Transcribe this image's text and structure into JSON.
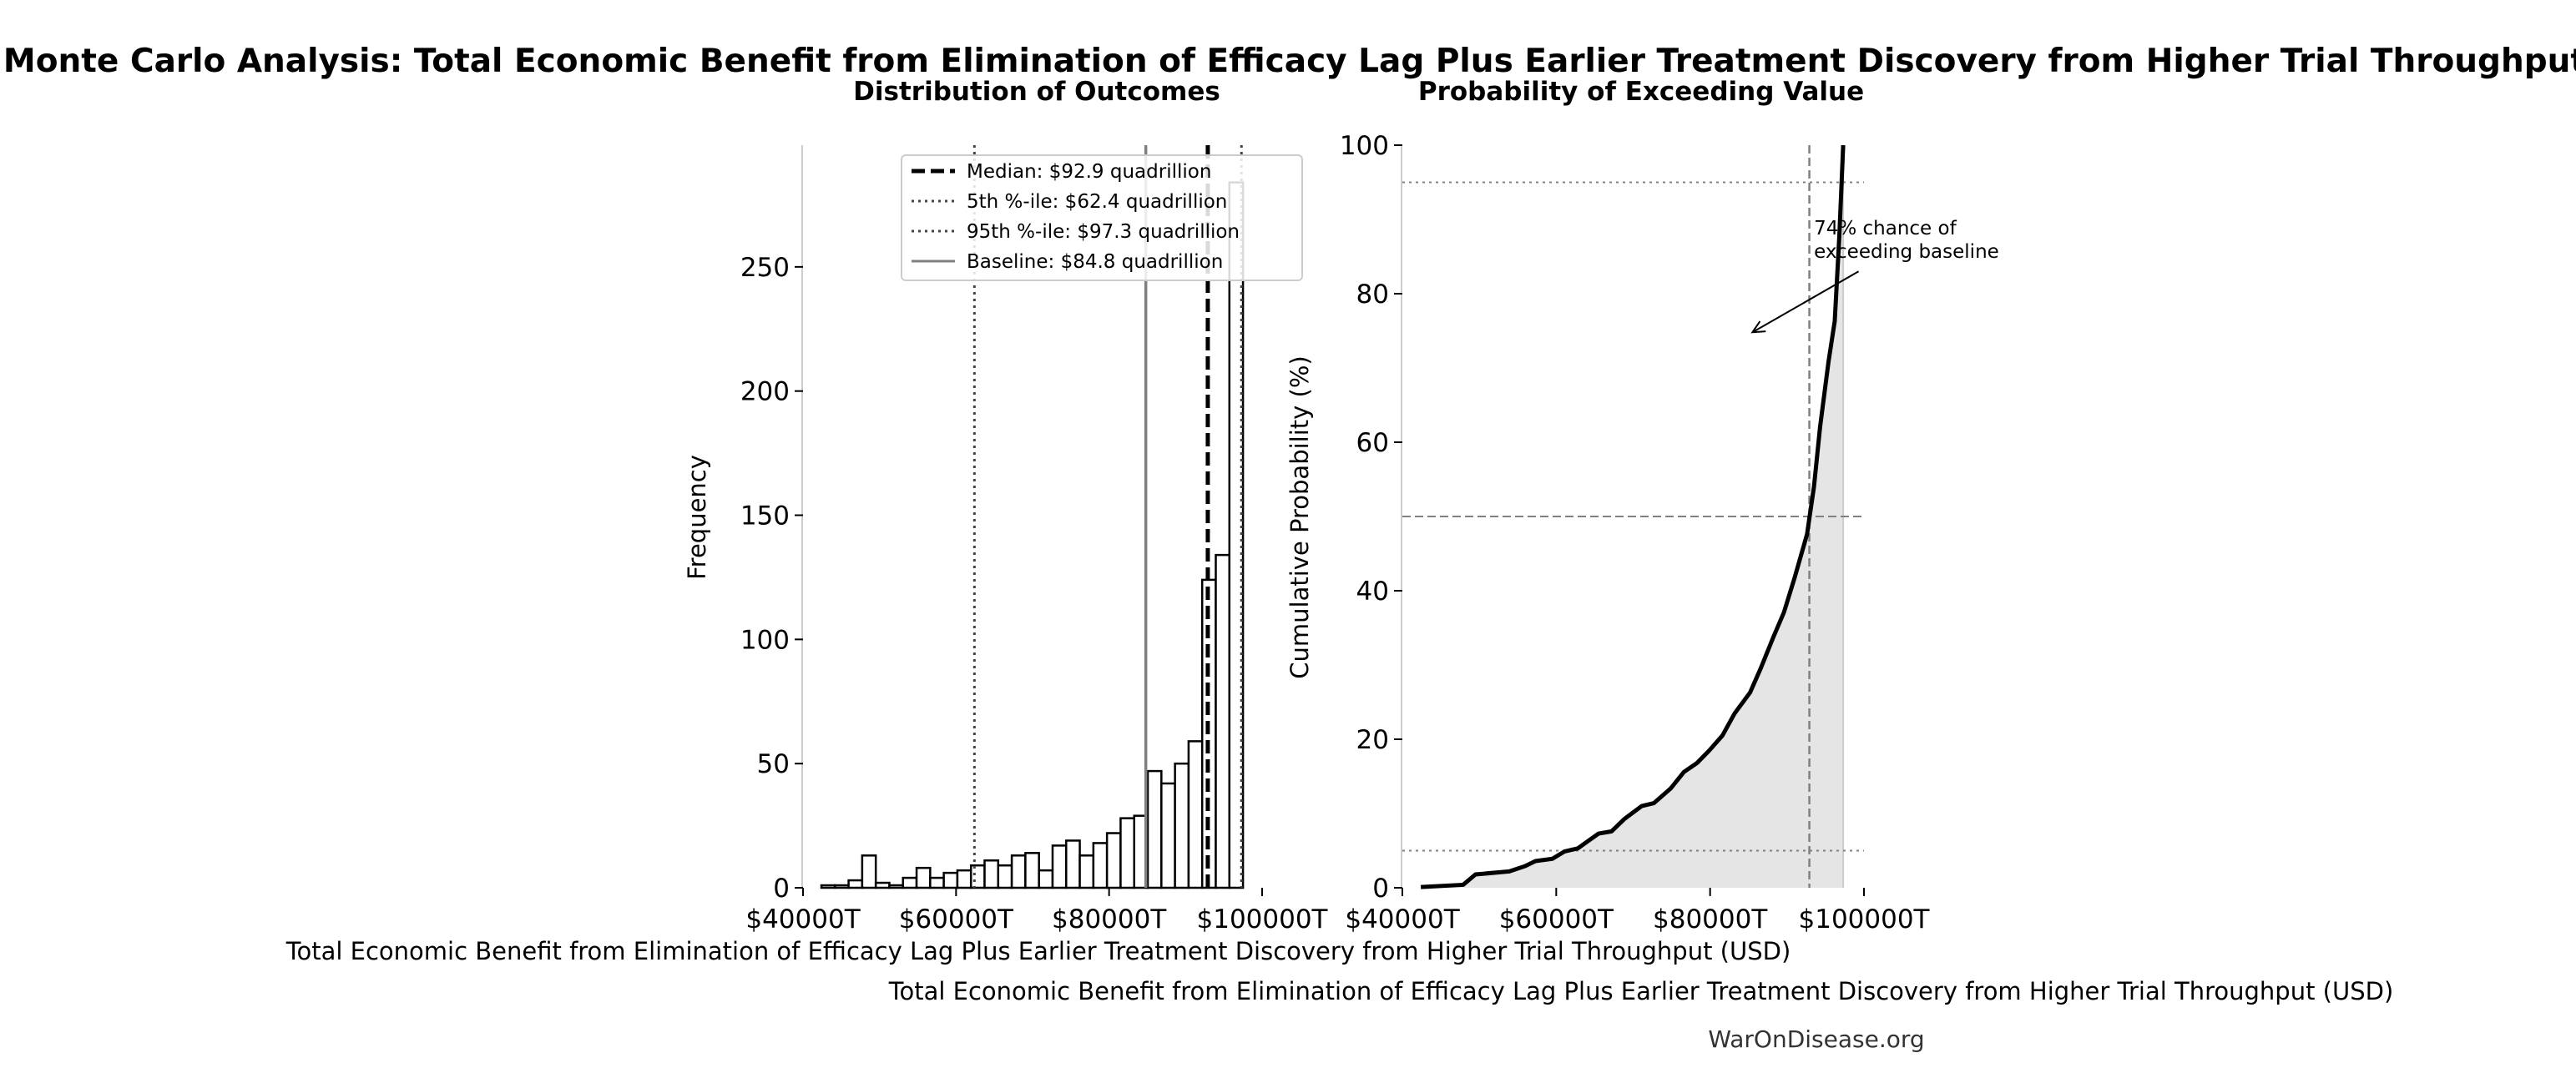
{
  "title": "Monte Carlo Analysis: Total Economic Benefit from Elimination of Efficacy Lag Plus Earlier Treatment Discovery from Higher Trial Throughput",
  "watermark": "WarOnDisease.org",
  "chart_data": [
    {
      "type": "bar",
      "title": "Distribution of Outcomes",
      "xlabel": "Total Economic Benefit from Elimination of Efficacy Lag Plus Earlier Treatment Discovery from Higher Trial Throughput (USD)",
      "ylabel": "Frequency",
      "xlim": [
        40000,
        100000
      ],
      "ylim": [
        0,
        299
      ],
      "xticks": [
        40000,
        60000,
        80000,
        100000
      ],
      "xtick_labels": [
        "$40000T",
        "$60000T",
        "$80000T",
        "$100000T"
      ],
      "yticks": [
        0,
        50,
        100,
        150,
        200,
        250
      ],
      "ytick_labels": [
        "0",
        "50",
        "100",
        "150",
        "200",
        "250"
      ],
      "bin_start": 42400,
      "bin_end": 97500,
      "values": [
        1,
        1,
        3,
        13,
        2,
        1,
        4,
        8,
        4,
        6,
        7,
        9,
        11,
        9,
        13,
        14,
        7,
        17,
        19,
        13,
        18,
        22,
        28,
        29,
        47,
        42,
        50,
        59,
        124,
        134,
        284
      ],
      "vlines": [
        {
          "label": "Median: $92.9 quadrillion",
          "x": 92900,
          "style": "dashed",
          "color": "#000000"
        },
        {
          "label": "5th %-ile: $62.4 quadrillion",
          "x": 62400,
          "style": "dotted",
          "color": "#444444"
        },
        {
          "label": "95th %-ile: $97.3 quadrillion",
          "x": 97300,
          "style": "dotted",
          "color": "#444444"
        },
        {
          "label": "Baseline: $84.8 quadrillion",
          "x": 84800,
          "style": "solid",
          "color": "#808080"
        }
      ],
      "legend": "top-right"
    },
    {
      "type": "line",
      "title": "Probability of Exceeding Value",
      "xlabel": "Total Economic Benefit from Elimination of Efficacy Lag Plus Earlier Treatment Discovery from Higher Trial Throughput (USD)",
      "ylabel": "Cumulative Probability (%)",
      "xlim": [
        40000,
        100000
      ],
      "ylim": [
        0,
        100
      ],
      "xticks": [
        40000,
        60000,
        80000,
        100000
      ],
      "xtick_labels": [
        "$40000T",
        "$60000T",
        "$80000T",
        "$100000T"
      ],
      "yticks": [
        0,
        20,
        40,
        60,
        80,
        100
      ],
      "ytick_labels": [
        "0",
        "20",
        "40",
        "60",
        "80",
        "100"
      ],
      "x": [
        42400,
        47900,
        49500,
        53900,
        55900,
        57300,
        59500,
        61100,
        62800,
        65500,
        67200,
        68900,
        71100,
        72700,
        74900,
        76600,
        78300,
        79900,
        81600,
        83200,
        85200,
        86600,
        88200,
        89600,
        91000,
        92600,
        93500,
        94300,
        95400,
        96200,
        96800,
        97300
      ],
      "y": [
        0.1,
        0.4,
        1.8,
        2.2,
        2.9,
        3.6,
        3.9,
        4.9,
        5.3,
        7.3,
        7.6,
        9.3,
        11,
        11.4,
        13.4,
        15.6,
        16.8,
        18.5,
        20.5,
        23.5,
        26.3,
        29.6,
        33.7,
        37.1,
        41.8,
        47.6,
        54,
        62.1,
        70.9,
        76.3,
        87.8,
        100
      ],
      "fill_color": "#e5e5e5",
      "hlines": [
        95,
        50,
        5
      ],
      "median_vline": 92900,
      "annotation": {
        "text_lines": [
          "74% chance of",
          "exceeding baseline"
        ],
        "text_x": 93500,
        "text_y": 88,
        "arrow_from": [
          99300,
          83
        ],
        "arrow_to": [
          85500,
          74.8
        ]
      }
    }
  ]
}
